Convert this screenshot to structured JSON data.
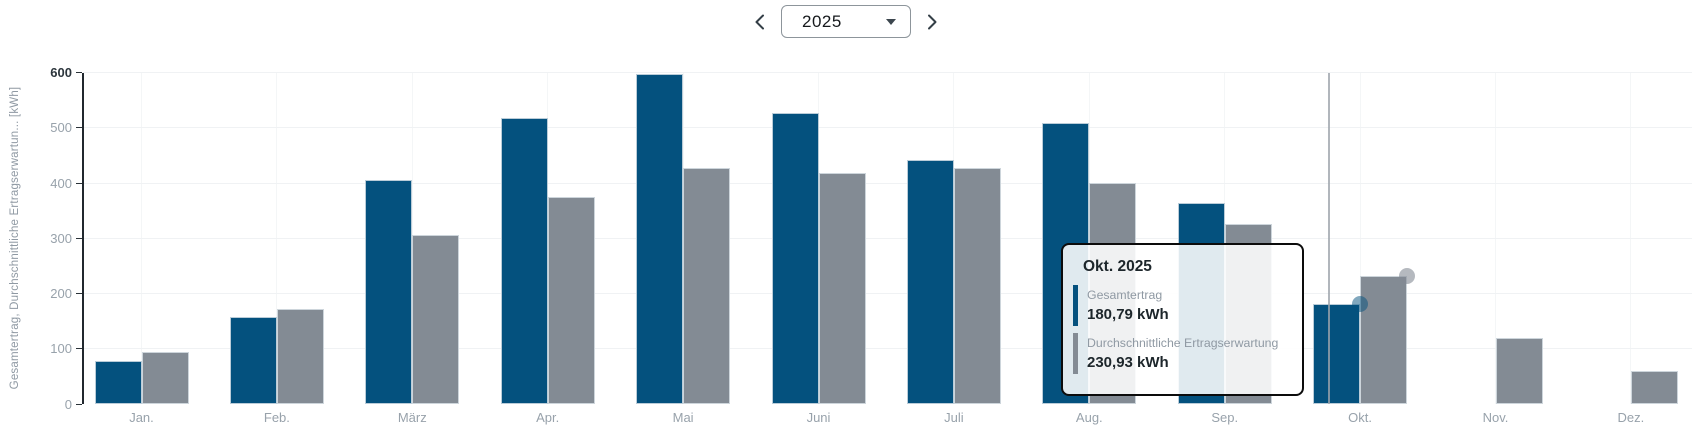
{
  "header": {
    "year": "2025",
    "prev_icon": "chevron-left",
    "next_icon": "chevron-down? no",
    "dropdown_icon": "caret-down"
  },
  "chart_data": {
    "type": "bar",
    "title": "",
    "categories": [
      "Jan.",
      "Feb.",
      "März",
      "Apr.",
      "Mai",
      "Juni",
      "Juli",
      "Aug.",
      "Sep.",
      "Okt.",
      "Nov.",
      "Dez."
    ],
    "series": [
      {
        "name": "Gesamtertrag",
        "color": "#04517e",
        "values": [
          78,
          157,
          405,
          517,
          597,
          526,
          442,
          509,
          364,
          180.79,
          null,
          null
        ]
      },
      {
        "name": "Durchschnittliche Ertragserwartung",
        "color": "#838b94",
        "values": [
          95,
          172,
          306,
          375,
          427,
          419,
          428,
          400,
          326,
          230.93,
          119,
          60
        ]
      }
    ],
    "ylabel": "Gesamtertrag, Durchschnittliche Ertragserwartun... [kWh]",
    "xlabel": "",
    "ylim": [
      0,
      600
    ],
    "yticks": [
      0,
      100,
      200,
      300,
      400,
      500,
      600
    ],
    "grid": true,
    "legend_position": "none",
    "hovered_category": "Okt.",
    "hovered_index": 9
  },
  "tooltip": {
    "title": "Okt. 2025",
    "rows": [
      {
        "label": "Gesamtertrag",
        "value": "180,79 kWh",
        "color": "#04517e"
      },
      {
        "label": "Durchschnittliche Ertragserwartung",
        "value": "230,93 kWh",
        "color": "#838b94"
      }
    ]
  },
  "colors": {
    "bar_primary": "#04517e",
    "bar_secondary": "#838b94",
    "axis": "#21282e",
    "tick_text": "#98a2ab",
    "tick_text_max": "#2c353c",
    "gridline": "#f0f2f4",
    "crosshair": "#9ea4ab",
    "tooltip_border": "#0c0c0c"
  }
}
